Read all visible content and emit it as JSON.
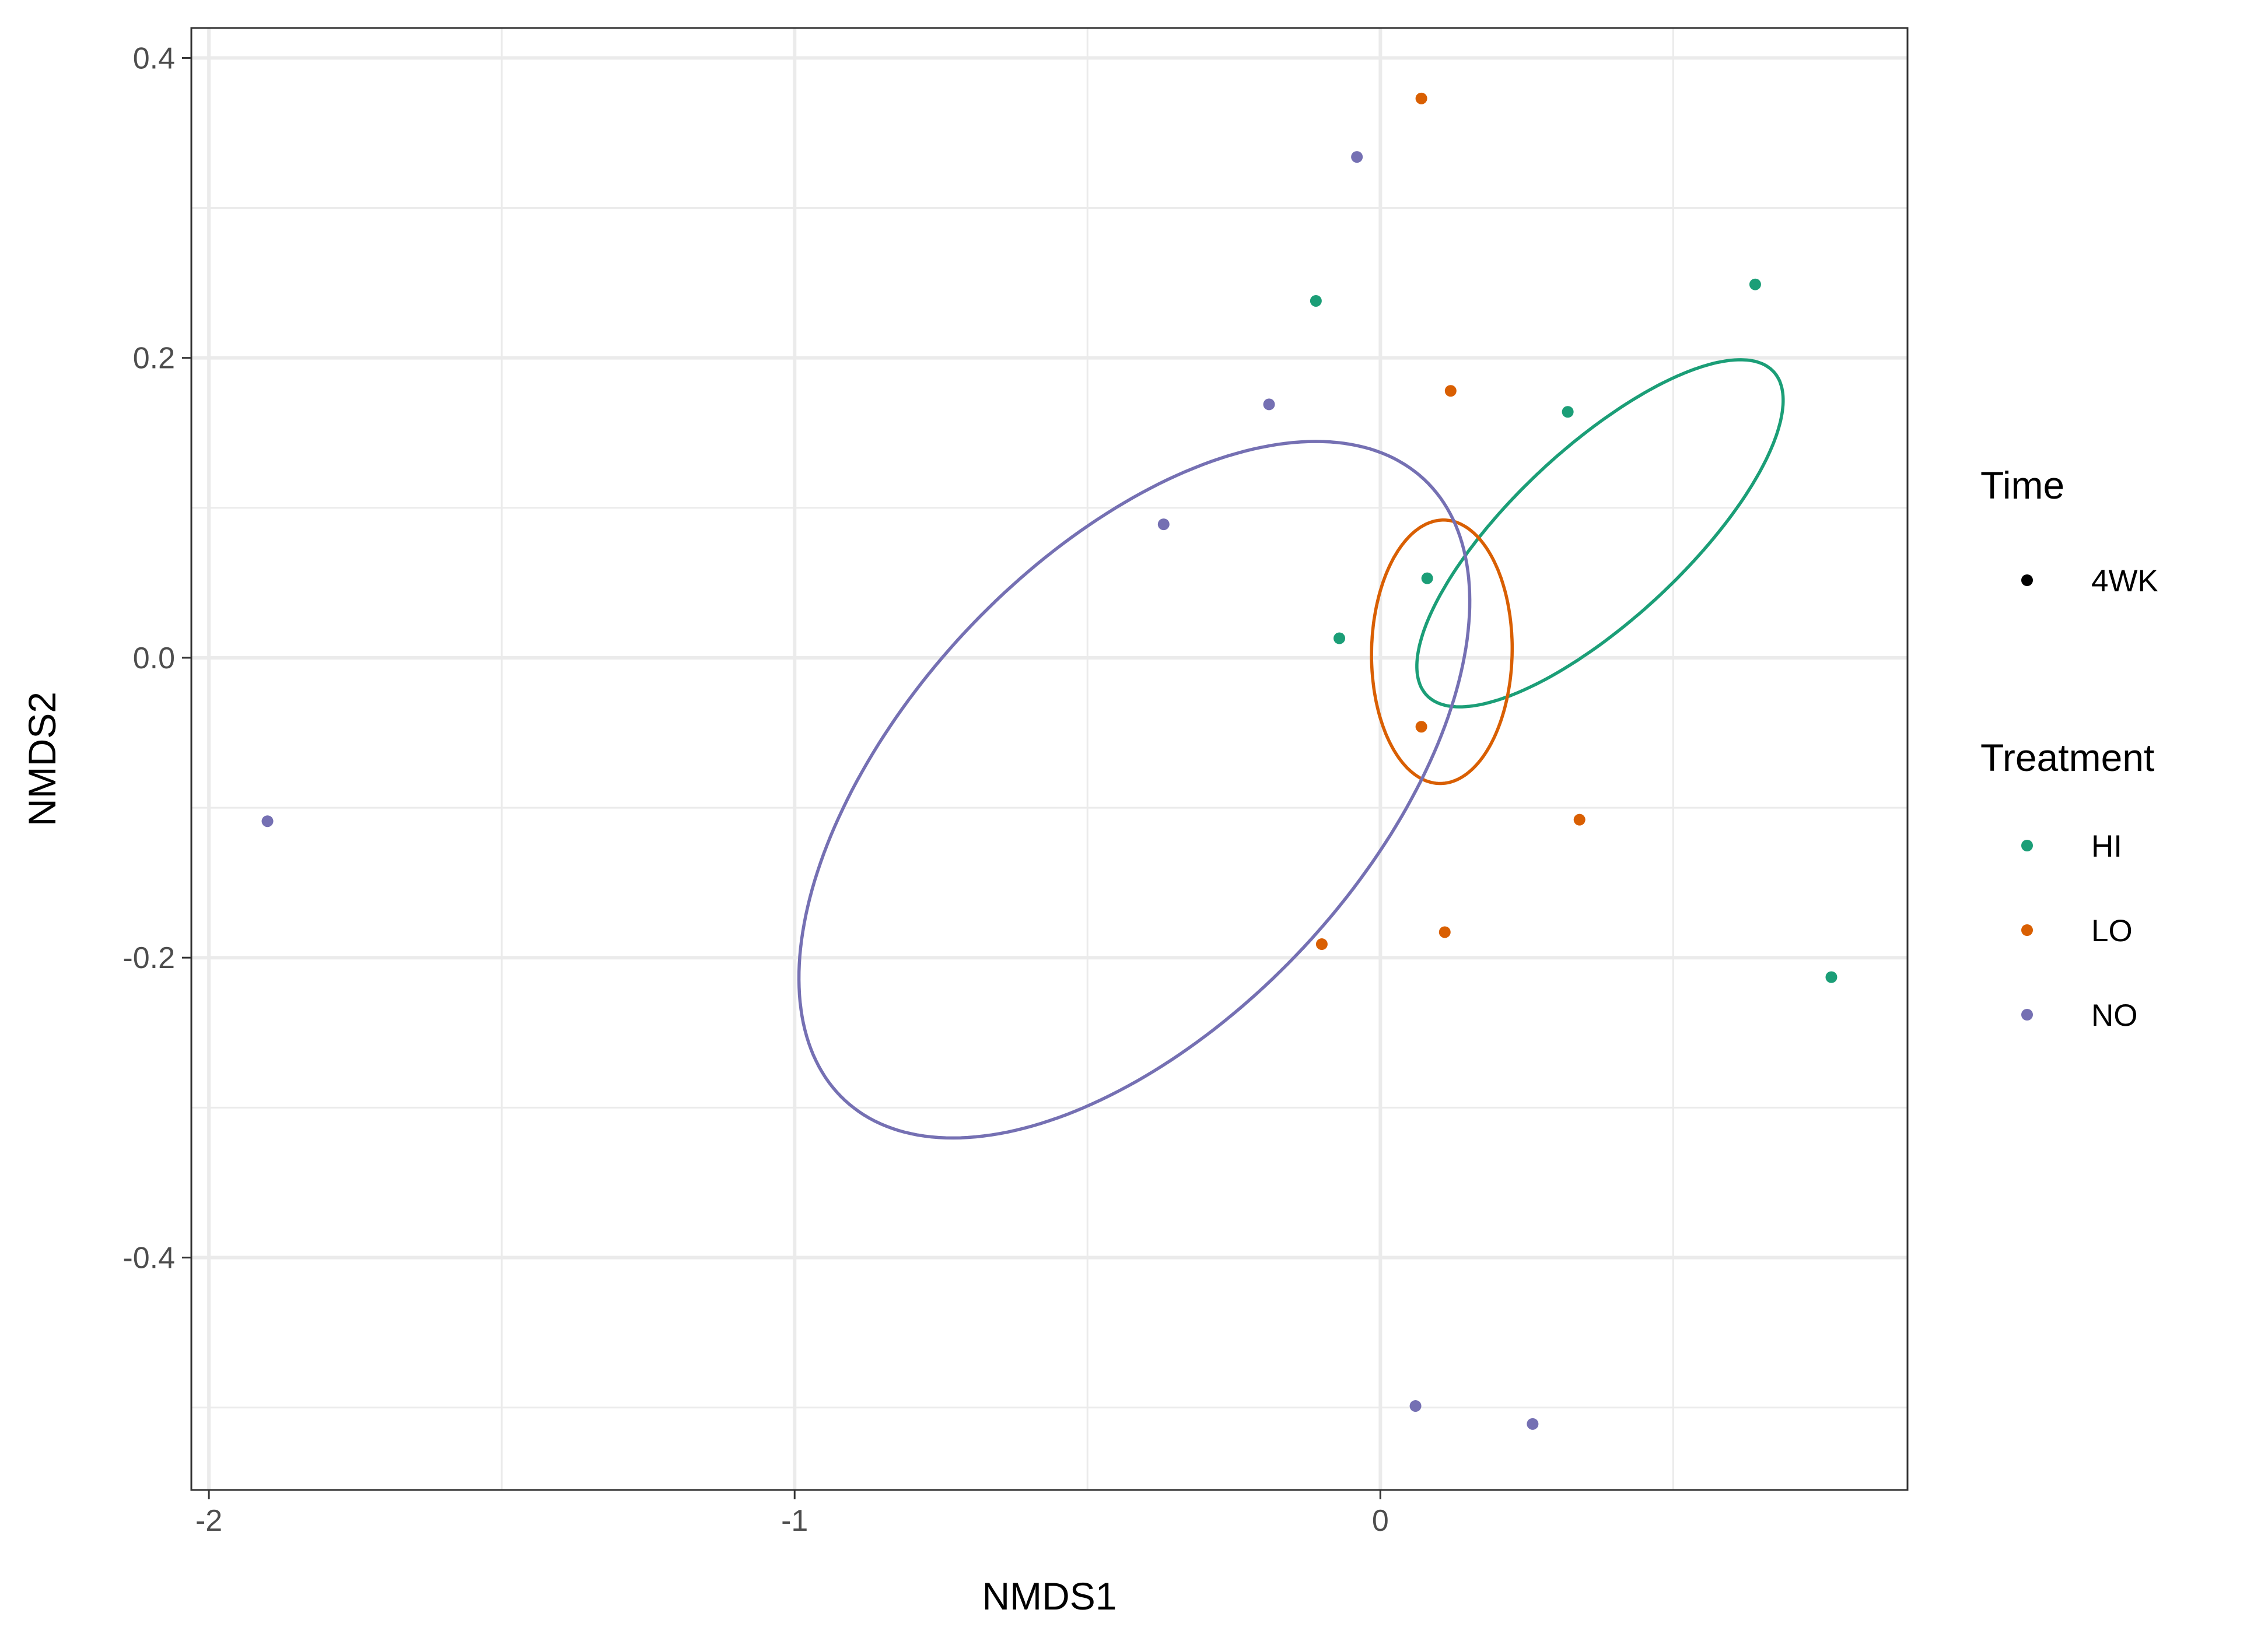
{
  "chart_data": {
    "type": "scatter",
    "title": "",
    "xlabel": "NMDS1",
    "ylabel": "NMDS2",
    "xlim": [
      -2.03,
      0.9
    ],
    "ylim": [
      -0.555,
      0.42
    ],
    "x_ticks": [
      -2,
      -1,
      0
    ],
    "x_tick_labels": [
      "-2",
      "-1",
      "0"
    ],
    "y_ticks": [
      -0.4,
      -0.2,
      0.0,
      0.2,
      0.4
    ],
    "y_tick_labels": [
      "-0.4",
      "-0.2",
      "0.0",
      "0.2",
      "0.4"
    ],
    "grid": true,
    "legend_position": "right",
    "legends": [
      {
        "title": "Time",
        "items": [
          {
            "label": "4WK",
            "color": "#000000"
          }
        ]
      },
      {
        "title": "Treatment",
        "items": [
          {
            "label": "HI",
            "color": "#1B9E77"
          },
          {
            "label": "LO",
            "color": "#D95F02"
          },
          {
            "label": "NO",
            "color": "#7570B3"
          }
        ]
      }
    ],
    "series": [
      {
        "name": "HI",
        "color": "#1B9E77",
        "points": [
          {
            "x": -0.11,
            "y": 0.238
          },
          {
            "x": 0.64,
            "y": 0.249
          },
          {
            "x": 0.32,
            "y": 0.164
          },
          {
            "x": 0.08,
            "y": 0.053
          },
          {
            "x": -0.07,
            "y": 0.013
          },
          {
            "x": 0.77,
            "y": -0.213
          }
        ],
        "ellipse": {
          "cx": 0.375,
          "cy": 0.083,
          "rx": 0.405,
          "ry": 0.147,
          "angle_deg": -43
        }
      },
      {
        "name": "LO",
        "color": "#D95F02",
        "points": [
          {
            "x": 0.07,
            "y": 0.373
          },
          {
            "x": 0.12,
            "y": 0.178
          },
          {
            "x": 0.07,
            "y": -0.046
          },
          {
            "x": 0.34,
            "y": -0.108
          },
          {
            "x": -0.1,
            "y": -0.191
          },
          {
            "x": 0.11,
            "y": -0.183
          }
        ],
        "ellipse": {
          "cx": 0.105,
          "cy": 0.004,
          "rx": 0.12,
          "ry": 0.225,
          "angle_deg": 1
        }
      },
      {
        "name": "NO",
        "color": "#7570B3",
        "points": [
          {
            "x": -0.04,
            "y": 0.334
          },
          {
            "x": -0.19,
            "y": 0.169
          },
          {
            "x": -0.37,
            "y": 0.089
          },
          {
            "x": -1.9,
            "y": -0.109
          },
          {
            "x": 0.06,
            "y": -0.499
          },
          {
            "x": 0.26,
            "y": -0.511
          }
        ],
        "ellipse": {
          "cx": -0.42,
          "cy": -0.088,
          "rx": 0.725,
          "ry": 0.395,
          "angle_deg": -47
        }
      }
    ]
  }
}
